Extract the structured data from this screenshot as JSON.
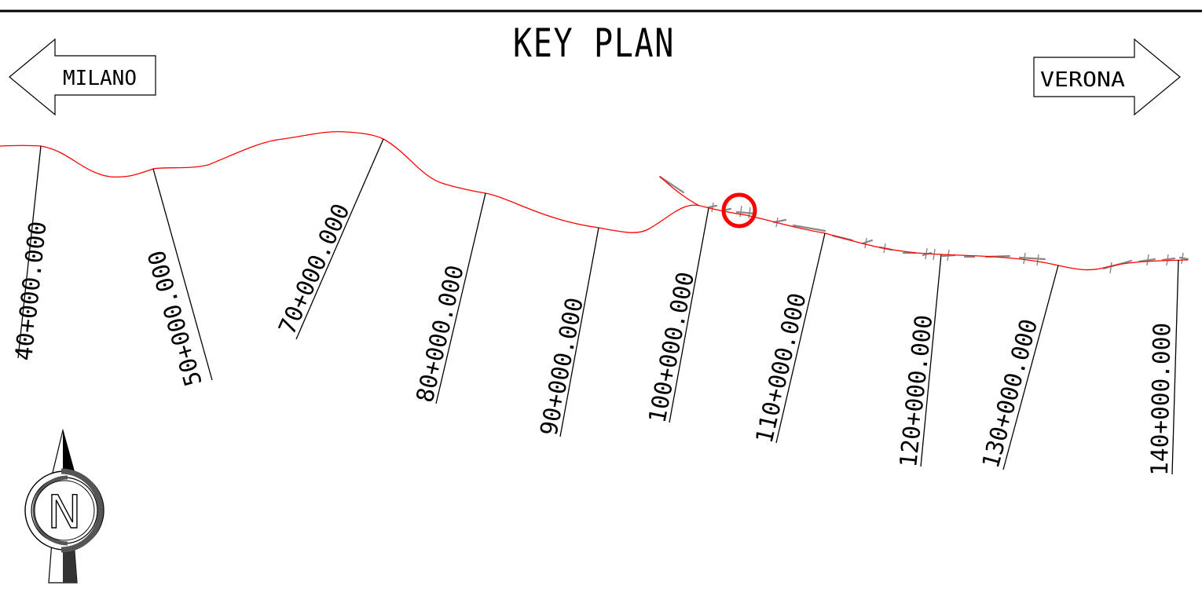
{
  "title": "KEY PLAN",
  "directions": {
    "left": "MILANO",
    "right": "VERONA"
  },
  "north_symbol": {
    "icon": "north-arrow-icon",
    "letter": "N"
  },
  "chainages": [
    "40+000.000",
    "50+000.000",
    "70+000.000",
    "80+000.000",
    "90+000.000",
    "100+000.000",
    "110+000.000",
    "120+000.000",
    "130+000.000",
    "140+000.000"
  ],
  "colors": {
    "route_line": "#ff0000",
    "highlight_marker": "#ff0000",
    "secondary_track": "#888888",
    "linework": "#000000"
  }
}
